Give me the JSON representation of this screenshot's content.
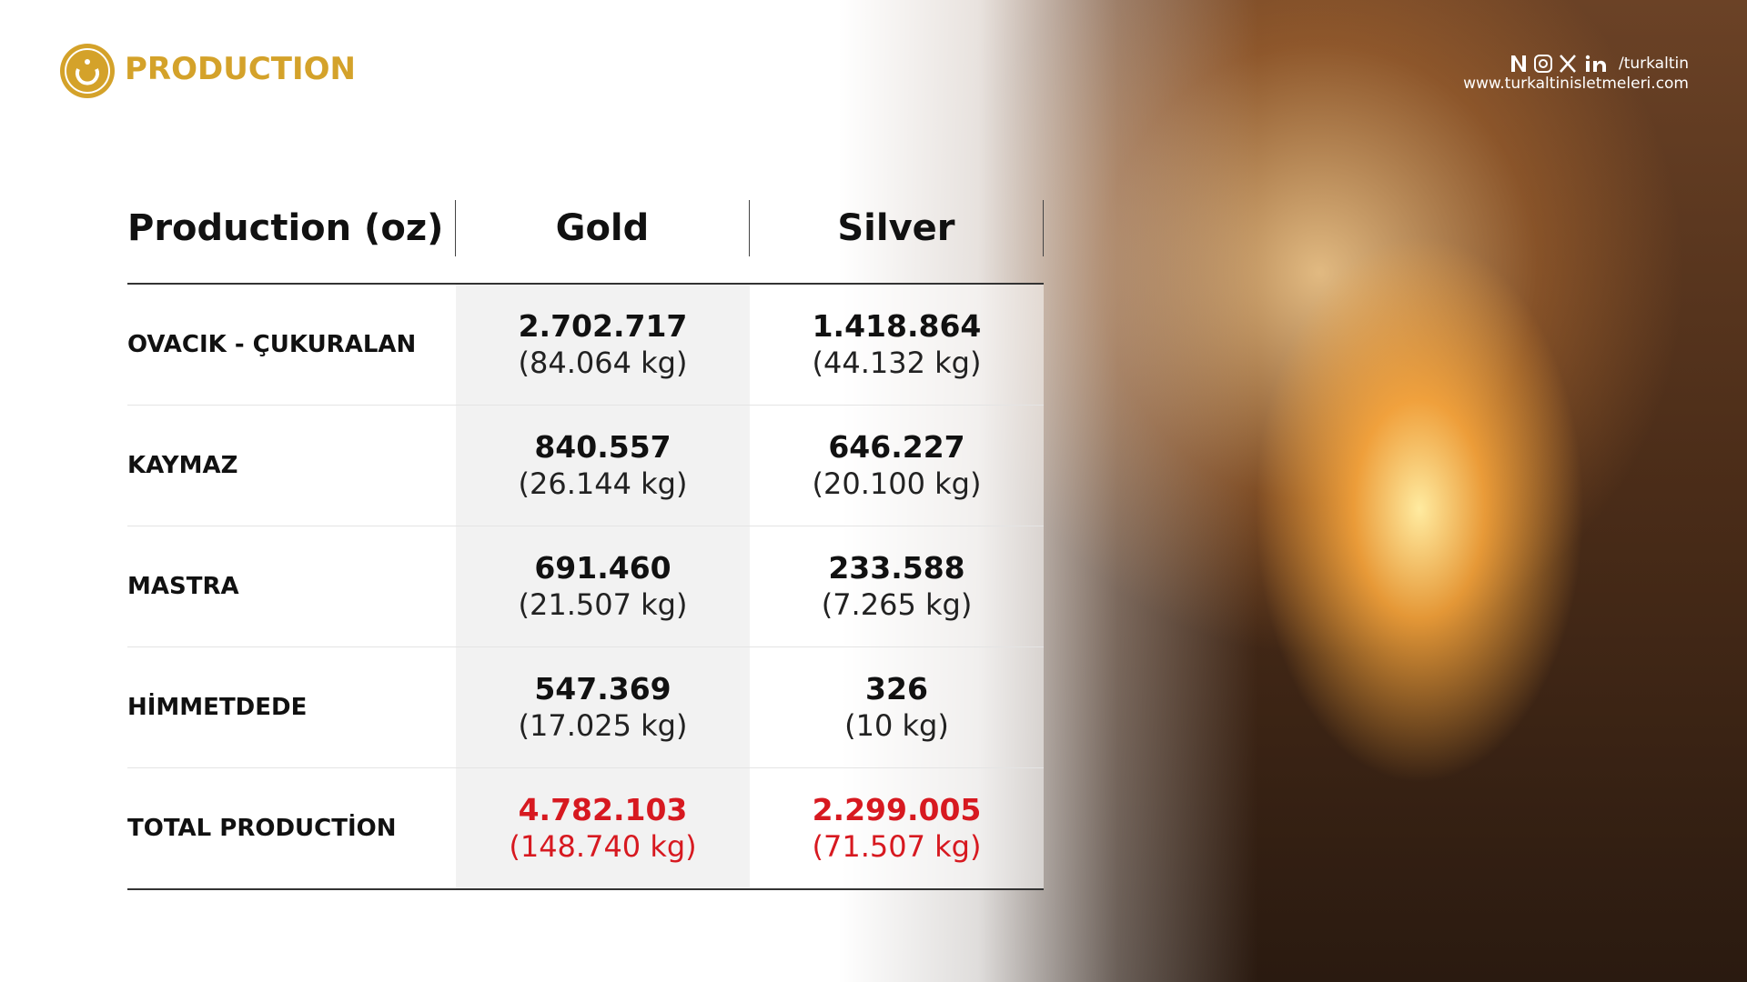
{
  "header": {
    "title": "PRODUCTION",
    "social_handle": "/turkaltin",
    "website": "www.turkaltinisletmeleri.com"
  },
  "table": {
    "headers": [
      "Production (oz)",
      "Gold",
      "Silver"
    ],
    "rows": [
      {
        "label": "OVACIK - ÇUKURALAN",
        "gold": {
          "oz": "2.702.717",
          "kg": "(84.064 kg)"
        },
        "silver": {
          "oz": "1.418.864",
          "kg": "(44.132 kg)"
        }
      },
      {
        "label": "KAYMAZ",
        "gold": {
          "oz": "840.557",
          "kg": "(26.144 kg)"
        },
        "silver": {
          "oz": "646.227",
          "kg": "(20.100 kg)"
        }
      },
      {
        "label": "MASTRA",
        "gold": {
          "oz": "691.460",
          "kg": "(21.507 kg)"
        },
        "silver": {
          "oz": "233.588",
          "kg": "(7.265 kg)"
        }
      },
      {
        "label": "HİMMETDEDE",
        "gold": {
          "oz": "547.369",
          "kg": "(17.025 kg)"
        },
        "silver": {
          "oz": "326",
          "kg": "(10 kg)"
        }
      },
      {
        "label": "TOTAL PRODUCTİON",
        "gold": {
          "oz": "4.782.103",
          "kg": "(148.740 kg)"
        },
        "silver": {
          "oz": "2.299.005",
          "kg": "(71.507 kg)"
        },
        "total": true
      }
    ]
  }
}
